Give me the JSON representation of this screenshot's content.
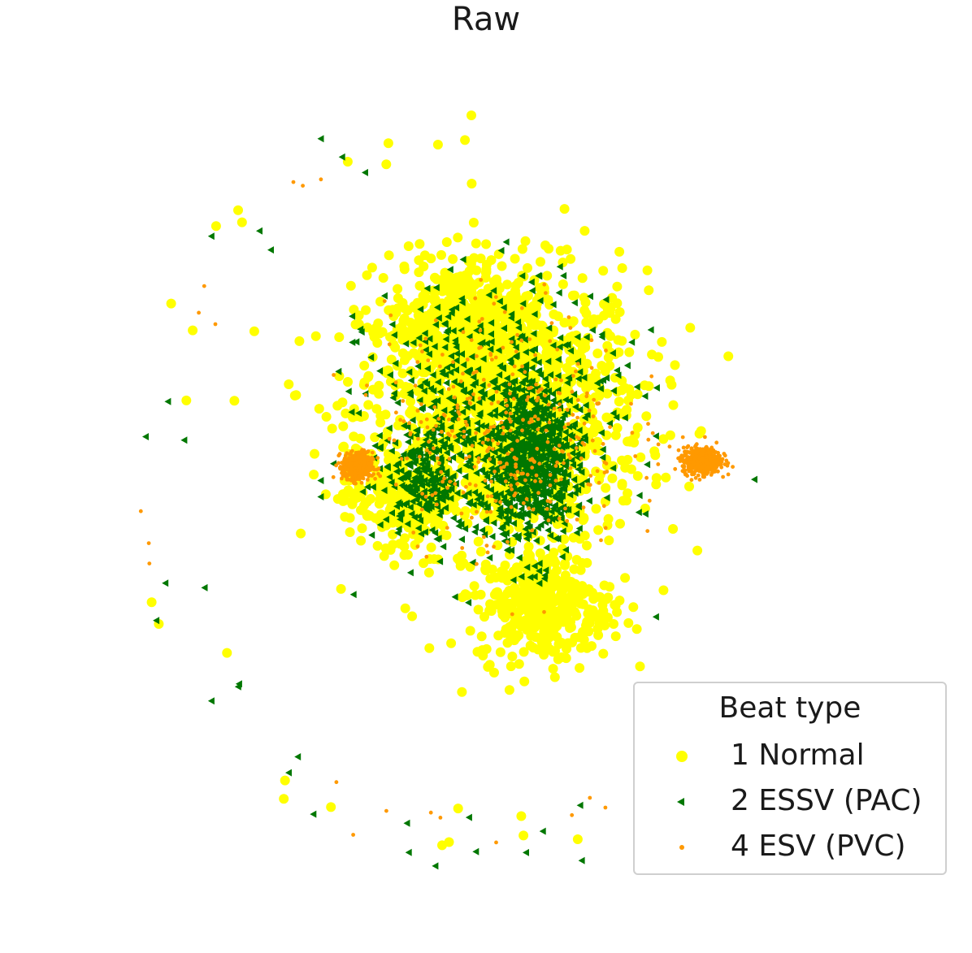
{
  "chart_data": {
    "type": "scatter",
    "title": "Raw",
    "xlabel": "",
    "ylabel": "",
    "axes_visible": false,
    "grid": false,
    "legend": {
      "title": "Beat type",
      "placement": "bottom-right"
    },
    "xlim": [
      -10,
      10
    ],
    "ylim": [
      -10,
      10
    ],
    "series": [
      {
        "name": "1 Normal",
        "marker": "circle",
        "color": "#ffff00",
        "clusters": [
          {
            "center": [
              0.4,
              1.6
            ],
            "spread": [
              3.4,
              3.0
            ],
            "count": 1300
          },
          {
            "center": [
              -0.6,
              3.6
            ],
            "spread": [
              1.8,
              1.4
            ],
            "count": 450
          },
          {
            "center": [
              1.5,
              -3.0
            ],
            "spread": [
              1.6,
              1.2
            ],
            "count": 350
          },
          {
            "center": [
              -2.3,
              -0.4
            ],
            "spread": [
              1.3,
              1.0
            ],
            "count": 250
          }
        ],
        "arc": {
          "center": [
            0,
            0
          ],
          "radius": 8.6,
          "angles_deg": [
            205,
            160,
            135,
            115,
            95,
            240,
            262,
            280
          ],
          "count": 30
        }
      },
      {
        "name": "2 ESSV (PAC)",
        "marker": "triangle-left",
        "color": "#007700",
        "clusters": [
          {
            "center": [
              1.2,
              0.4
            ],
            "spread": [
              0.9,
              1.6
            ],
            "count": 650
          },
          {
            "center": [
              -1.6,
              -0.1
            ],
            "spread": [
              0.9,
              0.9
            ],
            "count": 200
          },
          {
            "center": [
              0.2,
              1.4
            ],
            "spread": [
              3.0,
              2.8
            ],
            "count": 600
          }
        ],
        "arc": {
          "center": [
            0,
            0
          ],
          "radius": 8.6,
          "angles_deg": [
            195,
            170,
            140,
            120,
            215,
            235,
            255,
            270,
            285
          ],
          "count": 28
        }
      },
      {
        "name": "4 ESV (PVC)",
        "marker": "point",
        "color": "#ff9900",
        "clusters": [
          {
            "center": [
              -3.4,
              0.3
            ],
            "spread": [
              0.35,
              0.3
            ],
            "count": 500
          },
          {
            "center": [
              5.6,
              0.45
            ],
            "spread": [
              0.45,
              0.28
            ],
            "count": 600
          },
          {
            "center": [
              0.5,
              1.2
            ],
            "spread": [
              2.8,
              2.6
            ],
            "count": 350
          }
        ],
        "arc": {
          "center": [
            0,
            0
          ],
          "radius": 8.6,
          "angles_deg": [
            188,
            150,
            128,
            245,
            265,
            290
          ],
          "count": 14
        }
      }
    ]
  }
}
